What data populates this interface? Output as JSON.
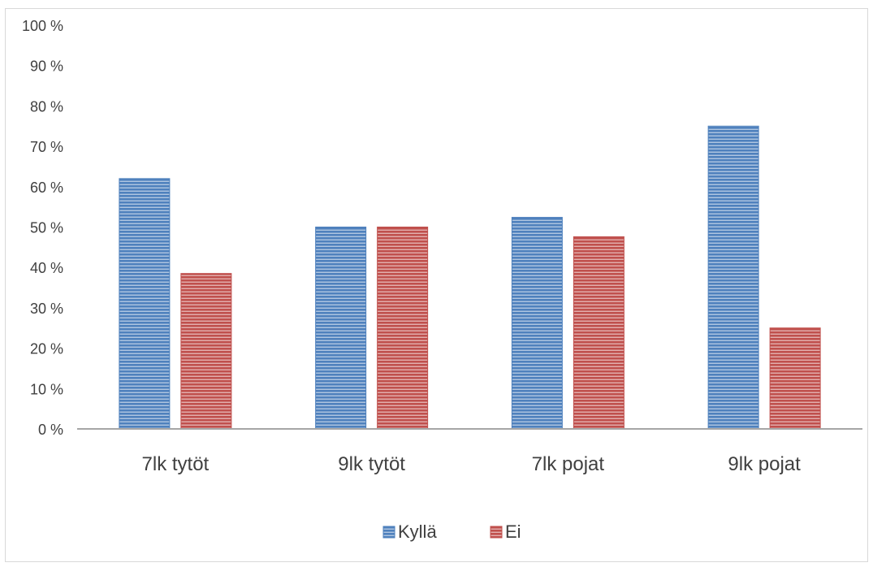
{
  "chart_data": {
    "type": "bar",
    "title": "",
    "xlabel": "",
    "ylabel": "",
    "categories": [
      "7lk tytöt",
      "9lk tytöt",
      "7lk pojat",
      "9lk pojat"
    ],
    "series": [
      {
        "name": "Kyllä",
        "values": [
          62,
          50,
          52.4,
          75
        ],
        "color": "#4f81bd"
      },
      {
        "name": "Ei",
        "values": [
          38.5,
          50,
          47.6,
          25
        ],
        "color": "#c0504d"
      }
    ],
    "ylim": [
      0,
      100
    ],
    "yticks": [
      0,
      10,
      20,
      30,
      40,
      50,
      60,
      70,
      80,
      90,
      100
    ],
    "y_tick_suffix": " %",
    "y_tick_labels": [
      "0 %",
      "10 %",
      "20 %",
      "30 %",
      "40 %",
      "50 %",
      "60 %",
      "70 %",
      "80 %",
      "90 %",
      "100 %"
    ],
    "grid": false,
    "legend_position": "bottom",
    "bar_fill": "horizontal-stripes"
  }
}
